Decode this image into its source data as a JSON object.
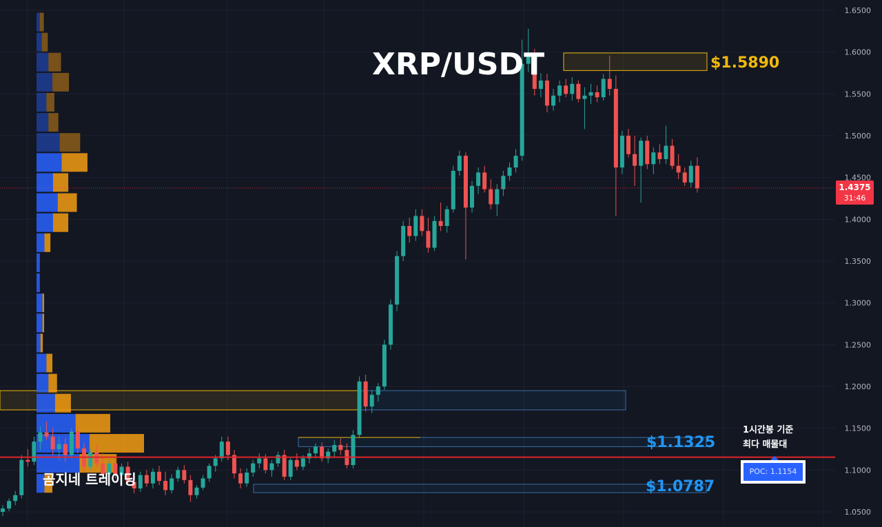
{
  "chart_title": "XRP/USDT",
  "watermark": "곰지네 트레이딩",
  "levels": {
    "top": "$1.5890",
    "mid": "$1.1325",
    "low": "$1.0787"
  },
  "annotation": {
    "line1": "1시간봉 기준",
    "line2": "최다 매물대",
    "poc_label": "POC: 1.1154"
  },
  "current_price": {
    "value": "1.4375",
    "countdown": "31:46"
  },
  "colors": {
    "background": "#131722",
    "up": "#26a69a",
    "down": "#ef5350",
    "grid": "#1e2230",
    "axis_text": "#b2b5be",
    "level_gold": "#f0b90b",
    "level_blue": "#2196f3",
    "poc_line": "#e0252b",
    "vp_buy": "#2962ff",
    "vp_sell": "#f39c12"
  },
  "chart_data": {
    "type": "candlestick",
    "title": "XRP/USDT",
    "interval_note": "1시간봉",
    "y_axis": {
      "ticks": [
        "1.6500",
        "1.6000",
        "1.5500",
        "1.5000",
        "1.4500",
        "1.4000",
        "1.3500",
        "1.3000",
        "1.2500",
        "1.2000",
        "1.1500",
        "1.1000",
        "1.0500"
      ],
      "range": [
        1.03,
        1.66
      ]
    },
    "levels": [
      {
        "label": "$1.5890",
        "price": 1.589,
        "zone": [
          1.578,
          1.599
        ]
      },
      {
        "label": "$1.1325",
        "price": 1.1325,
        "zone": [
          1.128,
          1.139
        ]
      },
      {
        "label": "$1.0787",
        "price": 1.0787,
        "zone": [
          1.073,
          1.083
        ]
      }
    ],
    "poc": 1.1154,
    "last_price": 1.4375,
    "candles": [
      [
        1.05,
        1.058,
        1.045,
        1.054
      ],
      [
        1.054,
        1.066,
        1.051,
        1.063
      ],
      [
        1.063,
        1.075,
        1.058,
        1.07
      ],
      [
        1.07,
        1.118,
        1.066,
        1.112
      ],
      [
        1.112,
        1.125,
        1.104,
        1.11
      ],
      [
        1.11,
        1.14,
        1.106,
        1.134
      ],
      [
        1.134,
        1.152,
        1.124,
        1.145
      ],
      [
        1.145,
        1.158,
        1.136,
        1.14
      ],
      [
        1.14,
        1.15,
        1.118,
        1.125
      ],
      [
        1.125,
        1.14,
        1.112,
        1.131
      ],
      [
        1.131,
        1.138,
        1.11,
        1.118
      ],
      [
        1.118,
        1.15,
        1.114,
        1.146
      ],
      [
        1.146,
        1.152,
        1.12,
        1.126
      ],
      [
        1.126,
        1.132,
        1.098,
        1.104
      ],
      [
        1.104,
        1.125,
        1.1,
        1.121
      ],
      [
        1.121,
        1.129,
        1.104,
        1.108
      ],
      [
        1.108,
        1.12,
        1.09,
        1.095
      ],
      [
        1.095,
        1.112,
        1.088,
        1.108
      ],
      [
        1.108,
        1.115,
        1.09,
        1.094
      ],
      [
        1.094,
        1.108,
        1.085,
        1.104
      ],
      [
        1.104,
        1.11,
        1.082,
        1.086
      ],
      [
        1.086,
        1.094,
        1.072,
        1.078
      ],
      [
        1.078,
        1.098,
        1.074,
        1.094
      ],
      [
        1.094,
        1.1,
        1.08,
        1.084
      ],
      [
        1.084,
        1.102,
        1.078,
        1.098
      ],
      [
        1.098,
        1.105,
        1.082,
        1.087
      ],
      [
        1.087,
        1.098,
        1.07,
        1.076
      ],
      [
        1.076,
        1.095,
        1.072,
        1.09
      ],
      [
        1.09,
        1.104,
        1.086,
        1.1
      ],
      [
        1.1,
        1.106,
        1.084,
        1.088
      ],
      [
        1.088,
        1.094,
        1.062,
        1.07
      ],
      [
        1.07,
        1.082,
        1.066,
        1.079
      ],
      [
        1.079,
        1.094,
        1.076,
        1.09
      ],
      [
        1.09,
        1.108,
        1.086,
        1.105
      ],
      [
        1.105,
        1.118,
        1.098,
        1.114
      ],
      [
        1.114,
        1.14,
        1.11,
        1.134
      ],
      [
        1.134,
        1.14,
        1.112,
        1.118
      ],
      [
        1.118,
        1.124,
        1.09,
        1.096
      ],
      [
        1.096,
        1.102,
        1.078,
        1.084
      ],
      [
        1.084,
        1.102,
        1.08,
        1.097
      ],
      [
        1.097,
        1.112,
        1.092,
        1.108
      ],
      [
        1.108,
        1.12,
        1.102,
        1.114
      ],
      [
        1.114,
        1.119,
        1.096,
        1.1
      ],
      [
        1.1,
        1.112,
        1.092,
        1.108
      ],
      [
        1.108,
        1.122,
        1.104,
        1.118
      ],
      [
        1.118,
        1.124,
        1.088,
        1.092
      ],
      [
        1.092,
        1.116,
        1.088,
        1.112
      ],
      [
        1.112,
        1.12,
        1.1,
        1.104
      ],
      [
        1.104,
        1.118,
        1.1,
        1.114
      ],
      [
        1.114,
        1.126,
        1.108,
        1.12
      ],
      [
        1.12,
        1.132,
        1.114,
        1.128
      ],
      [
        1.128,
        1.133,
        1.11,
        1.114
      ],
      [
        1.114,
        1.126,
        1.108,
        1.122
      ],
      [
        1.122,
        1.136,
        1.116,
        1.13
      ],
      [
        1.13,
        1.138,
        1.118,
        1.124
      ],
      [
        1.124,
        1.132,
        1.102,
        1.106
      ],
      [
        1.106,
        1.148,
        1.102,
        1.142
      ],
      [
        1.142,
        1.212,
        1.138,
        1.206
      ],
      [
        1.206,
        1.214,
        1.17,
        1.176
      ],
      [
        1.176,
        1.196,
        1.168,
        1.19
      ],
      [
        1.19,
        1.204,
        1.182,
        1.2
      ],
      [
        1.2,
        1.256,
        1.196,
        1.25
      ],
      [
        1.25,
        1.304,
        1.244,
        1.298
      ],
      [
        1.298,
        1.362,
        1.29,
        1.356
      ],
      [
        1.356,
        1.398,
        1.35,
        1.392
      ],
      [
        1.392,
        1.402,
        1.372,
        1.38
      ],
      [
        1.38,
        1.412,
        1.374,
        1.404
      ],
      [
        1.404,
        1.412,
        1.38,
        1.386
      ],
      [
        1.386,
        1.402,
        1.36,
        1.366
      ],
      [
        1.366,
        1.404,
        1.362,
        1.398
      ],
      [
        1.398,
        1.42,
        1.386,
        1.392
      ],
      [
        1.392,
        1.416,
        1.384,
        1.412
      ],
      [
        1.412,
        1.464,
        1.408,
        1.458
      ],
      [
        1.458,
        1.482,
        1.452,
        1.476
      ],
      [
        1.476,
        1.48,
        1.352,
        1.414
      ],
      [
        1.414,
        1.446,
        1.408,
        1.44
      ],
      [
        1.44,
        1.462,
        1.43,
        1.456
      ],
      [
        1.456,
        1.464,
        1.432,
        1.436
      ],
      [
        1.436,
        1.448,
        1.412,
        1.418
      ],
      [
        1.418,
        1.442,
        1.404,
        1.436
      ],
      [
        1.436,
        1.458,
        1.428,
        1.452
      ],
      [
        1.452,
        1.468,
        1.446,
        1.462
      ],
      [
        1.462,
        1.484,
        1.456,
        1.476
      ],
      [
        1.476,
        1.615,
        1.47,
        1.586
      ],
      [
        1.586,
        1.628,
        1.576,
        1.598
      ],
      [
        1.598,
        1.604,
        1.548,
        1.556
      ],
      [
        1.556,
        1.575,
        1.546,
        1.566
      ],
      [
        1.566,
        1.574,
        1.528,
        1.536
      ],
      [
        1.536,
        1.556,
        1.53,
        1.548
      ],
      [
        1.548,
        1.566,
        1.54,
        1.56
      ],
      [
        1.56,
        1.568,
        1.546,
        1.55
      ],
      [
        1.55,
        1.57,
        1.542,
        1.562
      ],
      [
        1.562,
        1.566,
        1.54,
        1.544
      ],
      [
        1.544,
        1.558,
        1.508,
        1.548
      ],
      [
        1.548,
        1.562,
        1.538,
        1.552
      ],
      [
        1.552,
        1.56,
        1.54,
        1.546
      ],
      [
        1.546,
        1.574,
        1.542,
        1.568
      ],
      [
        1.568,
        1.596,
        1.548,
        1.556
      ],
      [
        1.556,
        1.572,
        1.404,
        1.462
      ],
      [
        1.462,
        1.506,
        1.454,
        1.5
      ],
      [
        1.5,
        1.508,
        1.474,
        1.478
      ],
      [
        1.478,
        1.5,
        1.44,
        1.464
      ],
      [
        1.464,
        1.498,
        1.42,
        1.494
      ],
      [
        1.494,
        1.5,
        1.46,
        1.466
      ],
      [
        1.466,
        1.486,
        1.454,
        1.48
      ],
      [
        1.48,
        1.49,
        1.466,
        1.472
      ],
      [
        1.472,
        1.512,
        1.466,
        1.488
      ],
      [
        1.488,
        1.496,
        1.46,
        1.464
      ],
      [
        1.464,
        1.478,
        1.448,
        1.456
      ],
      [
        1.456,
        1.462,
        1.44,
        1.444
      ],
      [
        1.444,
        1.47,
        1.438,
        1.464
      ],
      [
        1.464,
        1.474,
        1.432,
        1.437
      ]
    ],
    "volume_profile": [
      {
        "price": 1.636,
        "buy": 10,
        "sell": 12
      },
      {
        "price": 1.612,
        "buy": 16,
        "sell": 18
      },
      {
        "price": 1.588,
        "buy": 36,
        "sell": 38
      },
      {
        "price": 1.564,
        "buy": 48,
        "sell": 50
      },
      {
        "price": 1.54,
        "buy": 30,
        "sell": 24
      },
      {
        "price": 1.516,
        "buy": 36,
        "sell": 30
      },
      {
        "price": 1.492,
        "buy": 70,
        "sell": 62
      },
      {
        "price": 1.468,
        "buy": 76,
        "sell": 78
      },
      {
        "price": 1.444,
        "buy": 50,
        "sell": 46
      },
      {
        "price": 1.42,
        "buy": 64,
        "sell": 58
      },
      {
        "price": 1.396,
        "buy": 50,
        "sell": 46
      },
      {
        "price": 1.372,
        "buy": 24,
        "sell": 18
      },
      {
        "price": 1.348,
        "buy": 10,
        "sell": 0
      },
      {
        "price": 1.324,
        "buy": 10,
        "sell": 0
      },
      {
        "price": 1.3,
        "buy": 18,
        "sell": 5
      },
      {
        "price": 1.276,
        "buy": 18,
        "sell": 5
      },
      {
        "price": 1.252,
        "buy": 12,
        "sell": 7
      },
      {
        "price": 1.228,
        "buy": 30,
        "sell": 18
      },
      {
        "price": 1.204,
        "buy": 36,
        "sell": 26
      },
      {
        "price": 1.18,
        "buy": 56,
        "sell": 48
      },
      {
        "price": 1.156,
        "buy": 118,
        "sell": 105
      },
      {
        "price": 1.132,
        "buy": 160,
        "sell": 165
      },
      {
        "price": 1.108,
        "buy": 130,
        "sell": 112
      },
      {
        "price": 1.084,
        "buy": 24,
        "sell": 24
      }
    ]
  }
}
